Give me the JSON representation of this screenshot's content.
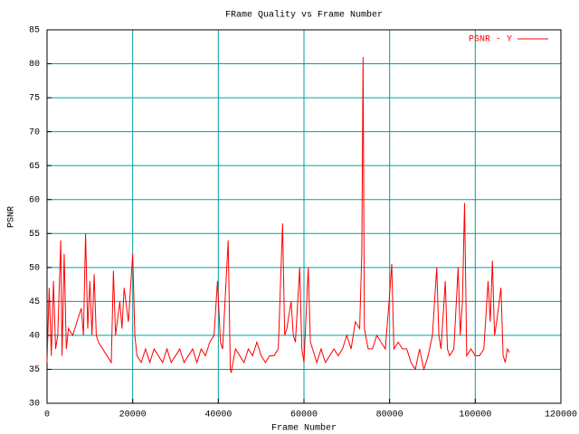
{
  "chart_data": {
    "type": "line",
    "title": "FRame Quality vs Frame Number",
    "x_label": "Frame Number",
    "y_label": "PSNR",
    "xlim": [
      0,
      120000
    ],
    "xticks": [
      0,
      20000,
      40000,
      60000,
      80000,
      100000,
      120000
    ],
    "ylim": [
      30,
      85
    ],
    "yticks": [
      30,
      35,
      40,
      45,
      50,
      55,
      60,
      65,
      70,
      75,
      80,
      85
    ],
    "grid": true,
    "grid_color": "#00a0a0",
    "legend": "top-right",
    "x": [
      0,
      500,
      1000,
      1500,
      2000,
      2500,
      3200,
      3500,
      4000,
      4500,
      5000,
      6000,
      7000,
      8000,
      8500,
      9000,
      9500,
      10000,
      10500,
      11000,
      11500,
      12000,
      13000,
      14000,
      15000,
      15500,
      16000,
      17000,
      17500,
      18000,
      19000,
      20000,
      20500,
      21000,
      22000,
      23000,
      24000,
      25000,
      26000,
      27000,
      28000,
      29000,
      30000,
      31000,
      32000,
      33000,
      34000,
      35000,
      36000,
      37000,
      38000,
      39000,
      39800,
      40500,
      41000,
      42300,
      42800,
      43000,
      44000,
      45000,
      46000,
      47000,
      48000,
      49000,
      50000,
      51000,
      52000,
      53000,
      54000,
      55000,
      55500,
      56000,
      57000,
      57500,
      58000,
      59000,
      59500,
      60000,
      61000,
      61500,
      62000,
      63000,
      64000,
      65000,
      66000,
      67000,
      68000,
      69000,
      70000,
      71000,
      72000,
      73000,
      73500,
      73800,
      74100,
      75000,
      76000,
      77000,
      78000,
      79000,
      80000,
      80500,
      81000,
      82000,
      83000,
      84000,
      85000,
      86000,
      87000,
      88000,
      89000,
      90000,
      91000,
      91500,
      92000,
      93000,
      93500,
      94000,
      95000,
      96000,
      96500,
      97000,
      97500,
      98000,
      99000,
      100000,
      101000,
      102000,
      103000,
      103500,
      104000,
      104500,
      105000,
      106000,
      106500,
      107000,
      107500,
      108000
    ],
    "series": [
      {
        "name": "PSNR - Y",
        "color": "#ff0000",
        "values": [
          36,
          47,
          37,
          48,
          38,
          40,
          54,
          37,
          52,
          38,
          41,
          40,
          42,
          44,
          40,
          55,
          41,
          48,
          40,
          49,
          40,
          39,
          38,
          37,
          36,
          49.5,
          40,
          45,
          41,
          47,
          42,
          52,
          40,
          37,
          36,
          38,
          36,
          38,
          37,
          36,
          38,
          36,
          37,
          38,
          36,
          37,
          38,
          36,
          38,
          37,
          39,
          40,
          48,
          39,
          38,
          54,
          35,
          34.5,
          38,
          37,
          36,
          38,
          37,
          39,
          37,
          36,
          37,
          37,
          38,
          56.5,
          40,
          41,
          45,
          40,
          39,
          50,
          38,
          36,
          50,
          39,
          38,
          36,
          38,
          36,
          37,
          38,
          37,
          38,
          40,
          38,
          42,
          41,
          52,
          81,
          41,
          38,
          38,
          40,
          39,
          38,
          46,
          50.5,
          38,
          39,
          38,
          38,
          36,
          35,
          38,
          35,
          37,
          40,
          50,
          40,
          38,
          48,
          38,
          37,
          38,
          50,
          40,
          45,
          59.5,
          37,
          38,
          37,
          37,
          38,
          48,
          42,
          51,
          40,
          42,
          47,
          37,
          36,
          38,
          37.5
        ]
      }
    ]
  }
}
